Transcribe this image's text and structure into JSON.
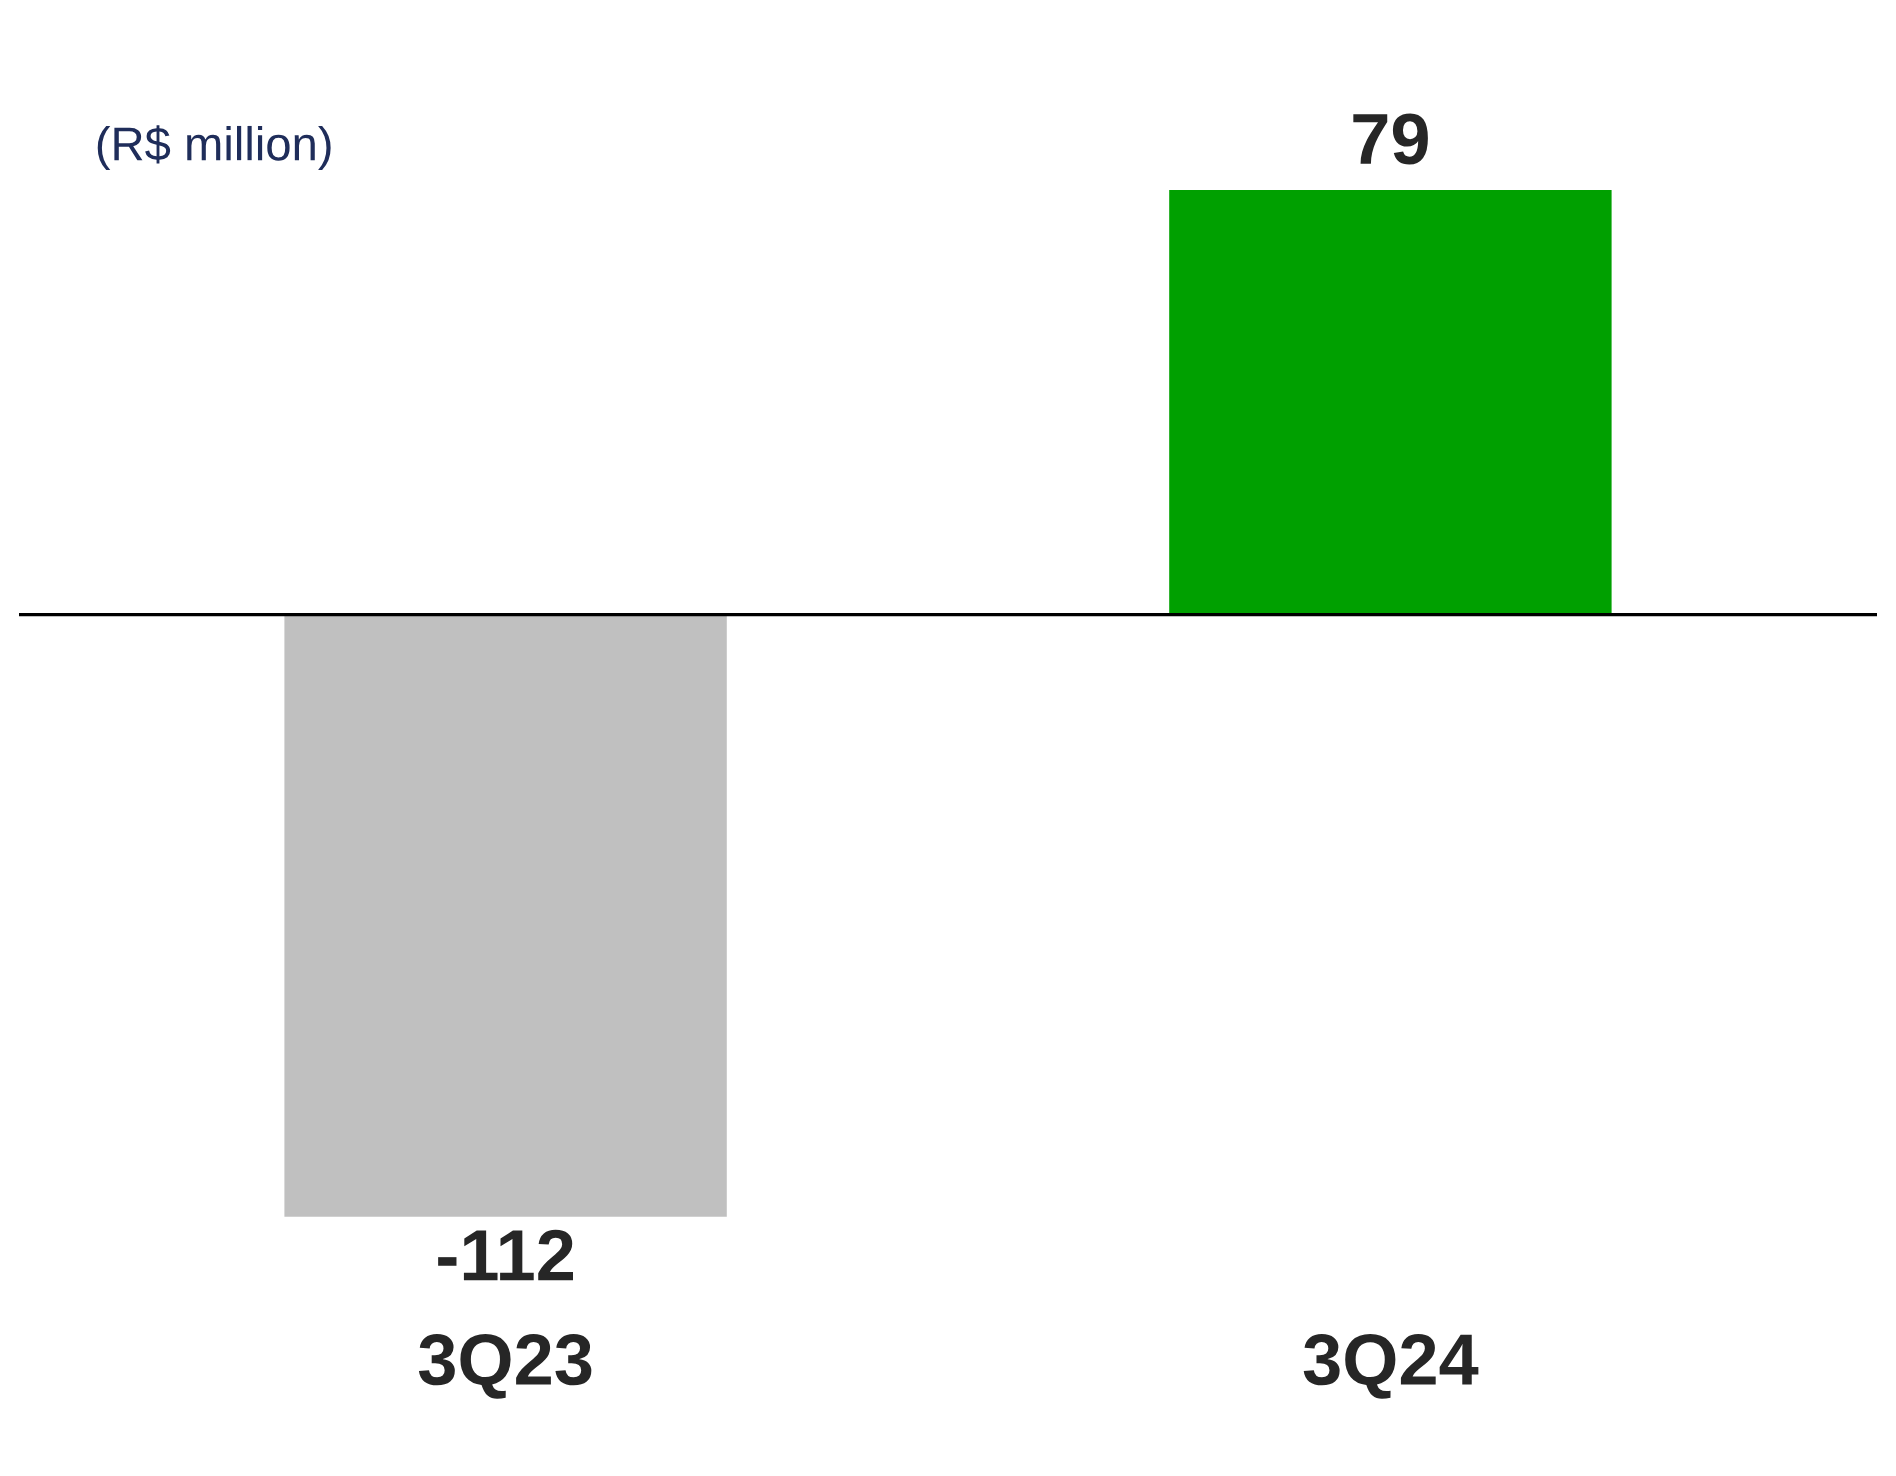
{
  "chart_data": {
    "type": "bar",
    "categories": [
      "3Q23",
      "3Q24"
    ],
    "values": [
      -112,
      79
    ],
    "colors": [
      "#c0c0c0",
      "#00a000"
    ],
    "data_labels": true,
    "annotations": [
      "(R$ million)"
    ],
    "grid": false,
    "legend": false
  }
}
